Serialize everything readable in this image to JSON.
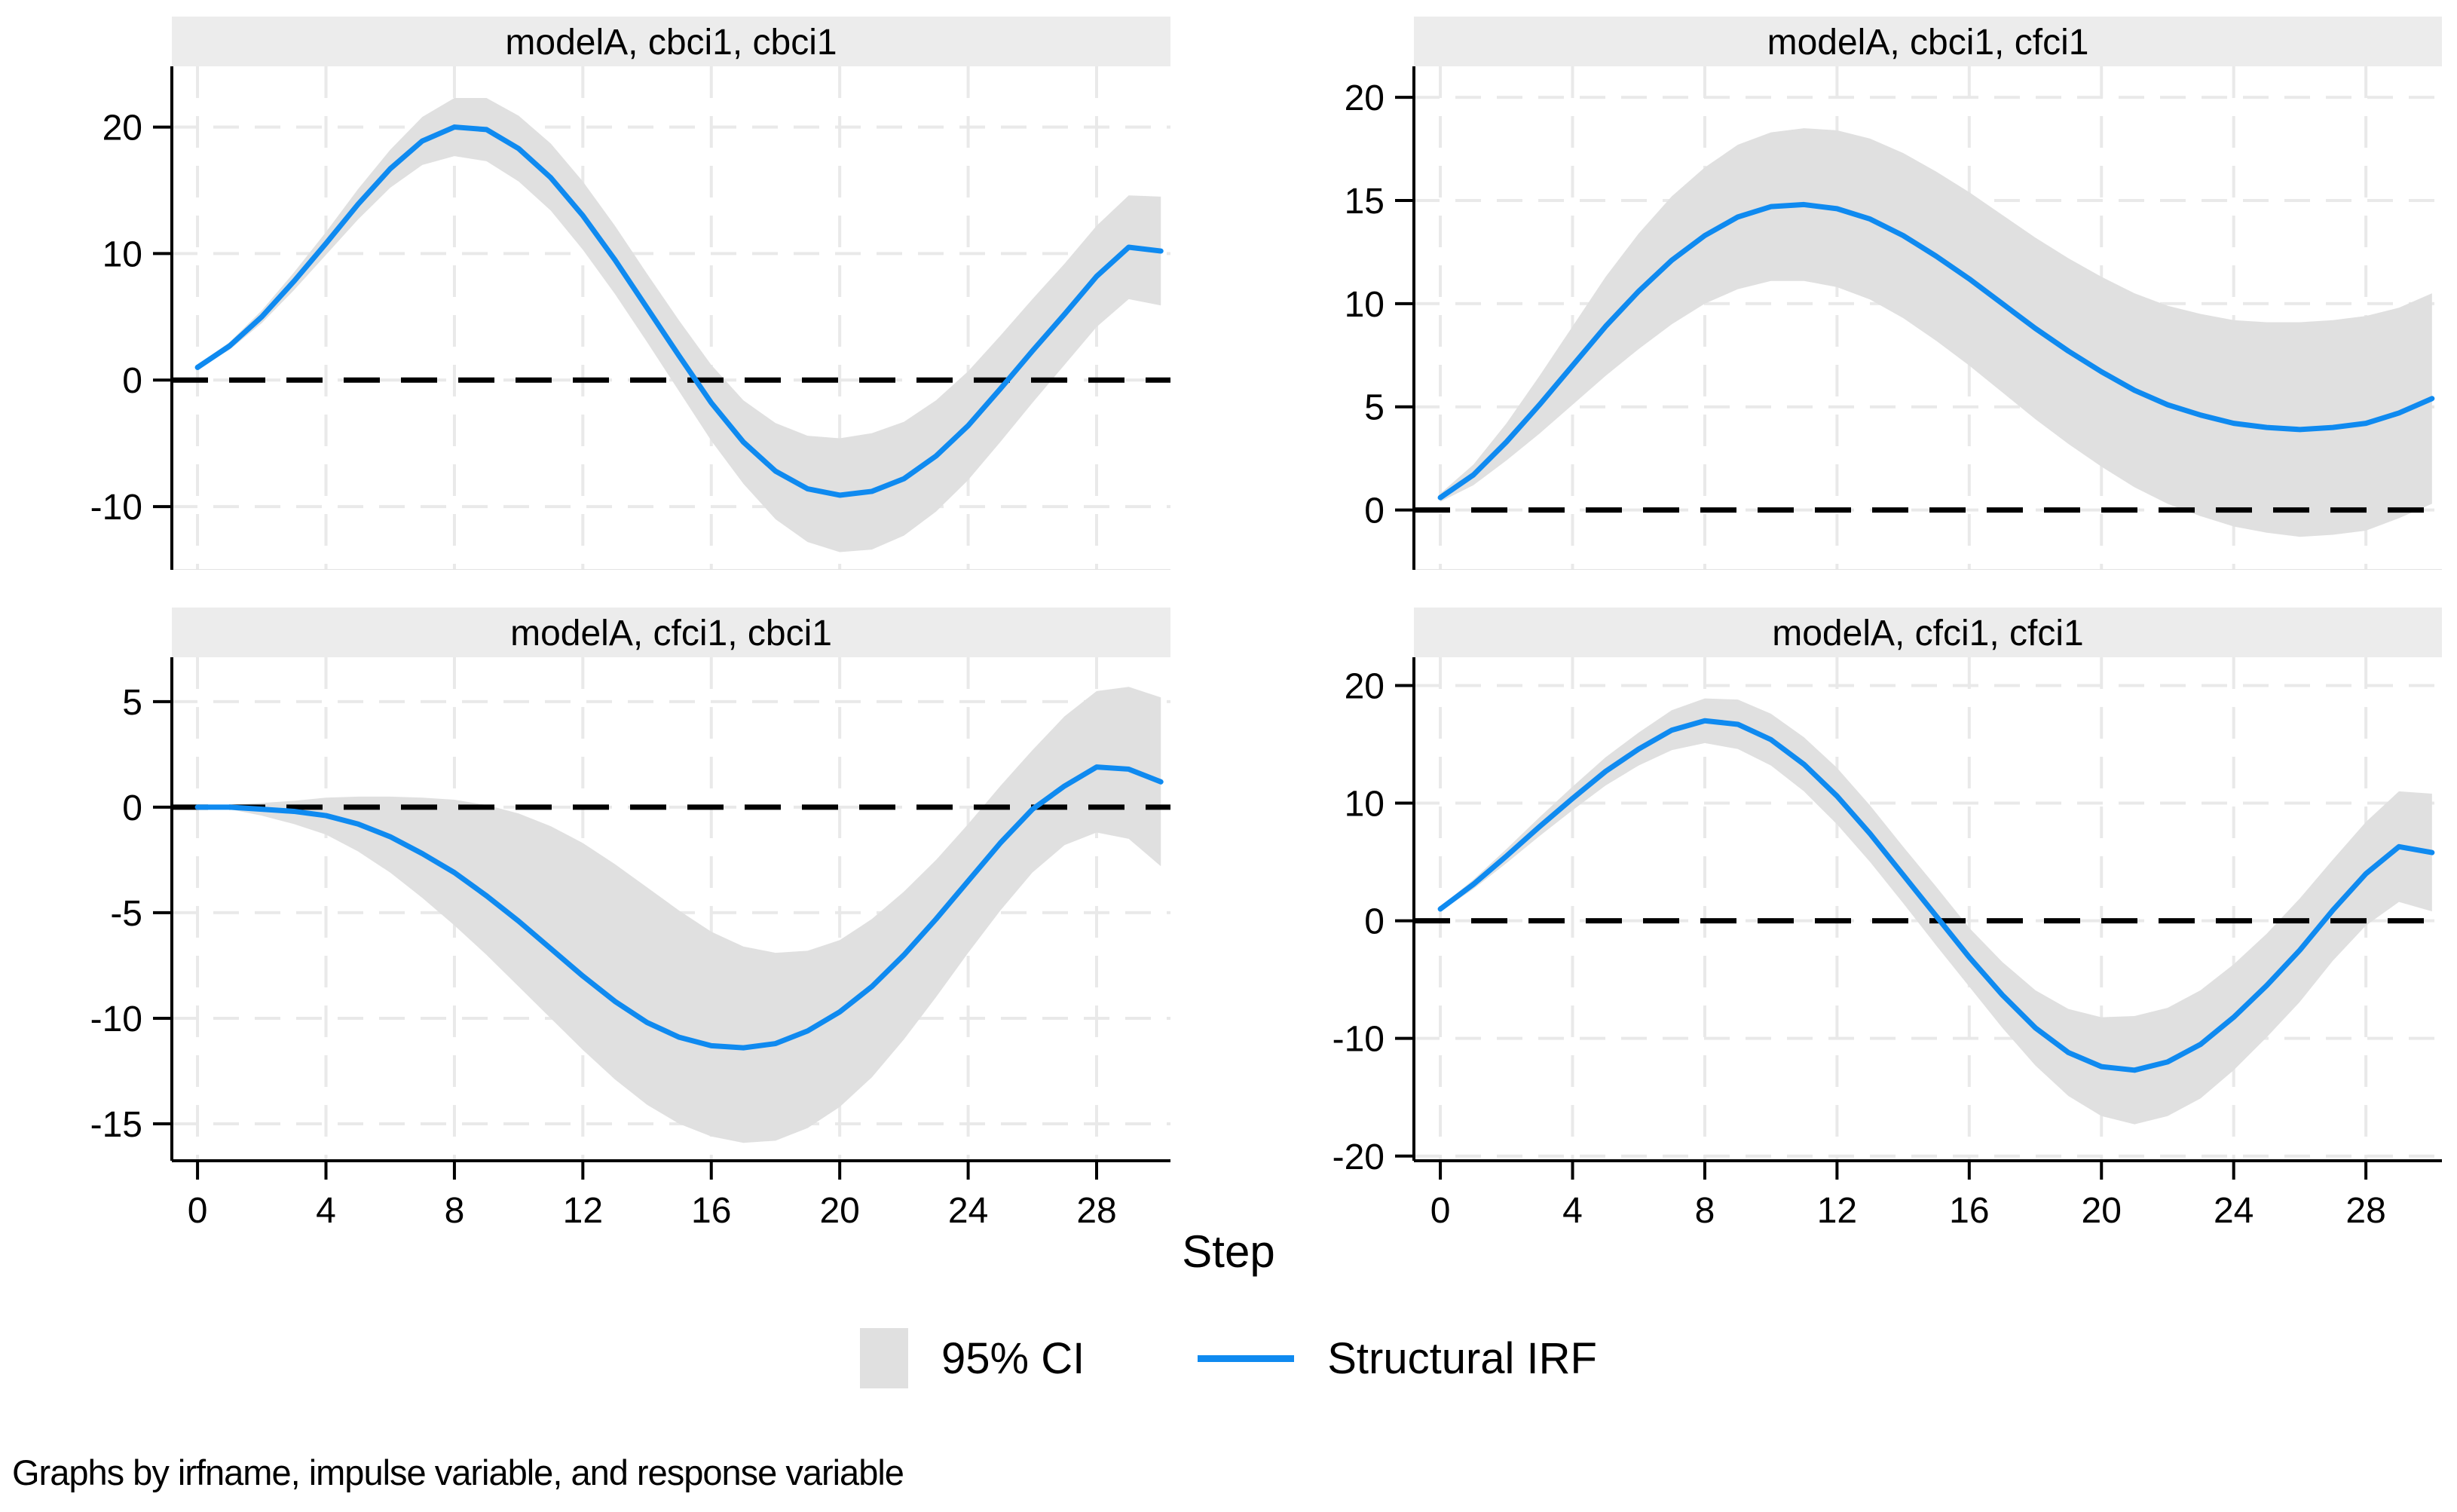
{
  "figure": {
    "xlabel": "Step",
    "note": "Graphs by irfname, impulse variable, and response variable",
    "colors": {
      "background": "#ffffff",
      "irf_line": "#0f8af0",
      "ci_fill": "#e0e0e0",
      "title_band": "#ececec",
      "grid": "#e9e9e9",
      "axis": "#000000",
      "zero_line": "#000000",
      "text": "#000000"
    }
  },
  "legend": {
    "position": "bottom-center",
    "ci_label": "95% CI",
    "irf_label": "Structural IRF"
  },
  "chart_data": [
    {
      "type": "line",
      "position": "top-left",
      "title": "modelA, cbci1, cbci1",
      "irfname": "modelA",
      "impulse": "cbci1",
      "response": "cbci1",
      "x": [
        0,
        1,
        2,
        3,
        4,
        5,
        6,
        7,
        8,
        9,
        10,
        11,
        12,
        13,
        14,
        15,
        16,
        17,
        18,
        19,
        20,
        21,
        22,
        23,
        24,
        25,
        26,
        27,
        28,
        29,
        30
      ],
      "irf": [
        1.0,
        2.7,
        5.0,
        7.8,
        10.8,
        13.9,
        16.7,
        18.9,
        20.0,
        19.8,
        18.3,
        16.0,
        13.0,
        9.5,
        5.7,
        1.9,
        -1.8,
        -4.9,
        -7.2,
        -8.6,
        -9.1,
        -8.8,
        -7.8,
        -6.0,
        -3.6,
        -0.7,
        2.3,
        5.2,
        8.2,
        10.5,
        10.2
      ],
      "ci_upper": [
        1.2,
        3.0,
        5.5,
        8.5,
        11.7,
        15.1,
        18.2,
        20.8,
        22.3,
        22.3,
        20.9,
        18.7,
        15.7,
        12.2,
        8.4,
        4.7,
        1.2,
        -1.6,
        -3.4,
        -4.4,
        -4.6,
        -4.2,
        -3.3,
        -1.6,
        0.7,
        3.5,
        6.4,
        9.2,
        12.2,
        14.6,
        14.5
      ],
      "ci_lower": [
        0.9,
        2.4,
        4.5,
        7.1,
        9.9,
        12.7,
        15.2,
        17.0,
        17.7,
        17.3,
        15.7,
        13.4,
        10.3,
        6.8,
        3.0,
        -0.9,
        -4.8,
        -8.2,
        -11.0,
        -12.8,
        -13.6,
        -13.4,
        -12.3,
        -10.4,
        -7.9,
        -4.9,
        -1.8,
        1.2,
        4.2,
        6.4,
        5.9
      ],
      "xticks": [
        0,
        4,
        8,
        12,
        16,
        20,
        24,
        28
      ],
      "xlim": [
        -0.8,
        30.3
      ],
      "yticks": [
        -10,
        0,
        10,
        20
      ],
      "ylim": [
        -15.0,
        24.8
      ],
      "zero_line": true,
      "grid": true,
      "show_x_tick_labels": false
    },
    {
      "type": "line",
      "position": "top-right",
      "title": "modelA, cbci1, cfci1",
      "irfname": "modelA",
      "impulse": "cbci1",
      "response": "cfci1",
      "x": [
        0,
        1,
        2,
        3,
        4,
        5,
        6,
        7,
        8,
        9,
        10,
        11,
        12,
        13,
        14,
        15,
        16,
        17,
        18,
        19,
        20,
        21,
        22,
        23,
        24,
        25,
        26,
        27,
        28,
        29,
        30
      ],
      "irf": [
        0.6,
        1.7,
        3.3,
        5.1,
        7.0,
        8.9,
        10.6,
        12.1,
        13.3,
        14.2,
        14.7,
        14.8,
        14.6,
        14.1,
        13.3,
        12.3,
        11.2,
        10.0,
        8.8,
        7.7,
        6.7,
        5.8,
        5.1,
        4.6,
        4.2,
        4.0,
        3.9,
        4.0,
        4.2,
        4.7,
        5.4
      ],
      "ci_upper": [
        0.8,
        2.2,
        4.2,
        6.5,
        8.9,
        11.3,
        13.4,
        15.2,
        16.6,
        17.7,
        18.3,
        18.5,
        18.4,
        18.0,
        17.3,
        16.4,
        15.4,
        14.3,
        13.2,
        12.2,
        11.3,
        10.5,
        9.9,
        9.5,
        9.2,
        9.1,
        9.1,
        9.2,
        9.4,
        9.8,
        10.5
      ],
      "ci_lower": [
        0.4,
        1.2,
        2.4,
        3.7,
        5.1,
        6.5,
        7.8,
        9.0,
        10.0,
        10.7,
        11.1,
        11.1,
        10.8,
        10.2,
        9.3,
        8.2,
        7.0,
        5.7,
        4.4,
        3.2,
        2.1,
        1.1,
        0.3,
        -0.3,
        -0.8,
        -1.1,
        -1.3,
        -1.2,
        -1.0,
        -0.4,
        0.3
      ],
      "xticks": [
        0,
        4,
        8,
        12,
        16,
        20,
        24,
        28
      ],
      "xlim": [
        -0.8,
        30.3
      ],
      "yticks": [
        0,
        5,
        10,
        15,
        20
      ],
      "ylim": [
        -2.9,
        21.5
      ],
      "zero_line": true,
      "grid": true,
      "show_x_tick_labels": false
    },
    {
      "type": "line",
      "position": "bottom-left",
      "title": "modelA, cfci1, cbci1",
      "irfname": "modelA",
      "impulse": "cfci1",
      "response": "cbci1",
      "x": [
        0,
        1,
        2,
        3,
        4,
        5,
        6,
        7,
        8,
        9,
        10,
        11,
        12,
        13,
        14,
        15,
        16,
        17,
        18,
        19,
        20,
        21,
        22,
        23,
        24,
        25,
        26,
        27,
        28,
        29,
        30
      ],
      "irf": [
        0.0,
        0.0,
        -0.1,
        -0.2,
        -0.4,
        -0.8,
        -1.4,
        -2.2,
        -3.1,
        -4.2,
        -5.4,
        -6.7,
        -8.0,
        -9.2,
        -10.2,
        -10.9,
        -11.3,
        -11.4,
        -11.2,
        -10.6,
        -9.7,
        -8.5,
        -7.0,
        -5.3,
        -3.5,
        -1.7,
        -0.1,
        1.0,
        1.9,
        1.8,
        1.2
      ],
      "ci_upper": [
        0.0,
        0.1,
        0.2,
        0.3,
        0.45,
        0.5,
        0.5,
        0.45,
        0.35,
        0.1,
        -0.3,
        -0.9,
        -1.7,
        -2.7,
        -3.8,
        -4.9,
        -5.9,
        -6.6,
        -6.9,
        -6.8,
        -6.3,
        -5.3,
        -4.0,
        -2.5,
        -0.8,
        1.0,
        2.7,
        4.3,
        5.5,
        5.7,
        5.2
      ],
      "ci_lower": [
        0.0,
        -0.1,
        -0.4,
        -0.8,
        -1.3,
        -2.1,
        -3.1,
        -4.3,
        -5.6,
        -7.0,
        -8.5,
        -10.0,
        -11.5,
        -12.9,
        -14.1,
        -15.0,
        -15.6,
        -15.9,
        -15.8,
        -15.2,
        -14.2,
        -12.8,
        -11.0,
        -9.0,
        -6.9,
        -4.9,
        -3.1,
        -1.8,
        -1.2,
        -1.5,
        -2.8
      ],
      "xticks": [
        0,
        4,
        8,
        12,
        16,
        20,
        24,
        28
      ],
      "xlim": [
        -0.8,
        30.3
      ],
      "yticks": [
        -15,
        -10,
        -5,
        0,
        5
      ],
      "ylim": [
        -16.75,
        7.1
      ],
      "zero_line": true,
      "grid": true,
      "show_x_tick_labels": true
    },
    {
      "type": "line",
      "position": "bottom-right",
      "title": "modelA, cfci1, cfci1",
      "irfname": "modelA",
      "impulse": "cfci1",
      "response": "cfci1",
      "x": [
        0,
        1,
        2,
        3,
        4,
        5,
        6,
        7,
        8,
        9,
        10,
        11,
        12,
        13,
        14,
        15,
        16,
        17,
        18,
        19,
        20,
        21,
        22,
        23,
        24,
        25,
        26,
        27,
        28,
        29,
        30
      ],
      "irf": [
        1.0,
        3.1,
        5.5,
        8.0,
        10.4,
        12.7,
        14.6,
        16.2,
        17.0,
        16.7,
        15.4,
        13.3,
        10.6,
        7.4,
        3.9,
        0.4,
        -3.1,
        -6.3,
        -9.1,
        -11.2,
        -12.4,
        -12.7,
        -12.0,
        -10.5,
        -8.2,
        -5.5,
        -2.5,
        0.9,
        4.0,
        6.3,
        5.8
      ],
      "ci_upper": [
        1.2,
        3.5,
        6.1,
        8.8,
        11.4,
        13.9,
        16.0,
        17.9,
        18.9,
        18.8,
        17.6,
        15.6,
        13.0,
        9.8,
        6.3,
        2.9,
        -0.6,
        -3.5,
        -5.9,
        -7.5,
        -8.2,
        -8.1,
        -7.4,
        -5.9,
        -3.7,
        -1.1,
        1.9,
        5.2,
        8.4,
        11.0,
        10.8
      ],
      "ci_lower": [
        0.8,
        2.7,
        4.9,
        7.2,
        9.4,
        11.5,
        13.2,
        14.5,
        15.1,
        14.6,
        13.2,
        11.0,
        8.2,
        5.0,
        1.5,
        -2.1,
        -5.6,
        -9.1,
        -12.3,
        -14.9,
        -16.6,
        -17.3,
        -16.6,
        -15.1,
        -12.7,
        -9.9,
        -6.9,
        -3.4,
        -0.4,
        1.6,
        0.8
      ],
      "xticks": [
        0,
        4,
        8,
        12,
        16,
        20,
        24,
        28
      ],
      "xlim": [
        -0.8,
        30.3
      ],
      "yticks": [
        -20,
        -10,
        0,
        10,
        20
      ],
      "ylim": [
        -20.4,
        22.4
      ],
      "zero_line": true,
      "grid": true,
      "show_x_tick_labels": true
    }
  ]
}
